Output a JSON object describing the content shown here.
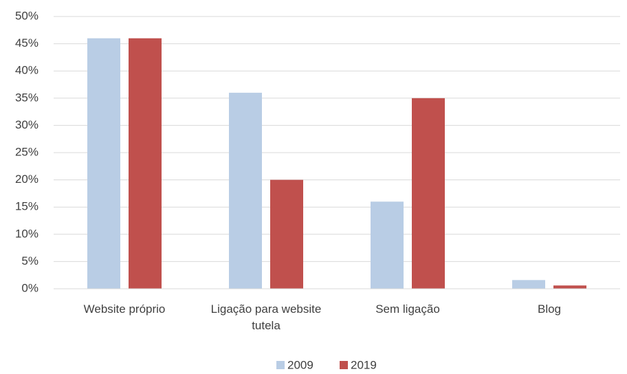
{
  "chart_data": {
    "type": "bar",
    "categories": [
      "Website próprio",
      "Ligação para website tutela",
      "Sem ligação",
      "Blog"
    ],
    "series": [
      {
        "name": "2009",
        "color": "#b9cde5",
        "values": [
          46,
          36,
          16,
          1.6
        ]
      },
      {
        "name": "2019",
        "color": "#c0504d",
        "values": [
          46,
          20,
          35,
          0.6
        ]
      }
    ],
    "ylim": [
      0,
      50
    ],
    "yticks": [
      {
        "value": 0,
        "label": "0%"
      },
      {
        "value": 5,
        "label": "5%"
      },
      {
        "value": 10,
        "label": "10%"
      },
      {
        "value": 15,
        "label": "15%"
      },
      {
        "value": 20,
        "label": "20%"
      },
      {
        "value": 25,
        "label": "25%"
      },
      {
        "value": 30,
        "label": "30%"
      },
      {
        "value": 35,
        "label": "35%"
      },
      {
        "value": 40,
        "label": "40%"
      },
      {
        "value": 45,
        "label": "45%"
      },
      {
        "value": 50,
        "label": "50%"
      }
    ],
    "grid": true,
    "legend": "bottom"
  }
}
